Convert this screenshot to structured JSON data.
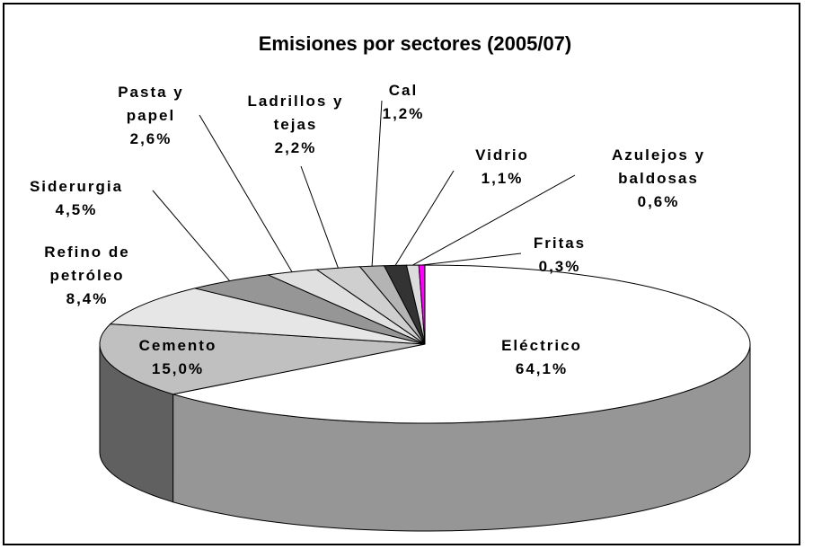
{
  "chart_data": {
    "type": "pie3d",
    "title": "Emisiones por sectores (2005/07)",
    "categories": [
      "Eléctrico",
      "Cemento",
      "Refino de petróleo",
      "Siderurgia",
      "Pasta y papel",
      "Ladrillos y tejas",
      "Cal",
      "Vidrio",
      "Azulejos y baldosas",
      "Fritas"
    ],
    "values": [
      64.1,
      15.0,
      8.4,
      4.5,
      2.6,
      2.2,
      1.2,
      1.1,
      0.6,
      0.3
    ],
    "value_labels": [
      "64,1%",
      "15,0%",
      "8,4%",
      "4,5%",
      "2,6%",
      "2,2%",
      "1,2%",
      "1,1%",
      "0,6%",
      "0,3%"
    ],
    "colors": [
      "#ffffff",
      "#c0c0c0",
      "#e6e6e6",
      "#969696",
      "#e0e0e0",
      "#cfcfcf",
      "#b4b4b4",
      "#333333",
      "#dcdcdc",
      "#ff00ff"
    ]
  }
}
